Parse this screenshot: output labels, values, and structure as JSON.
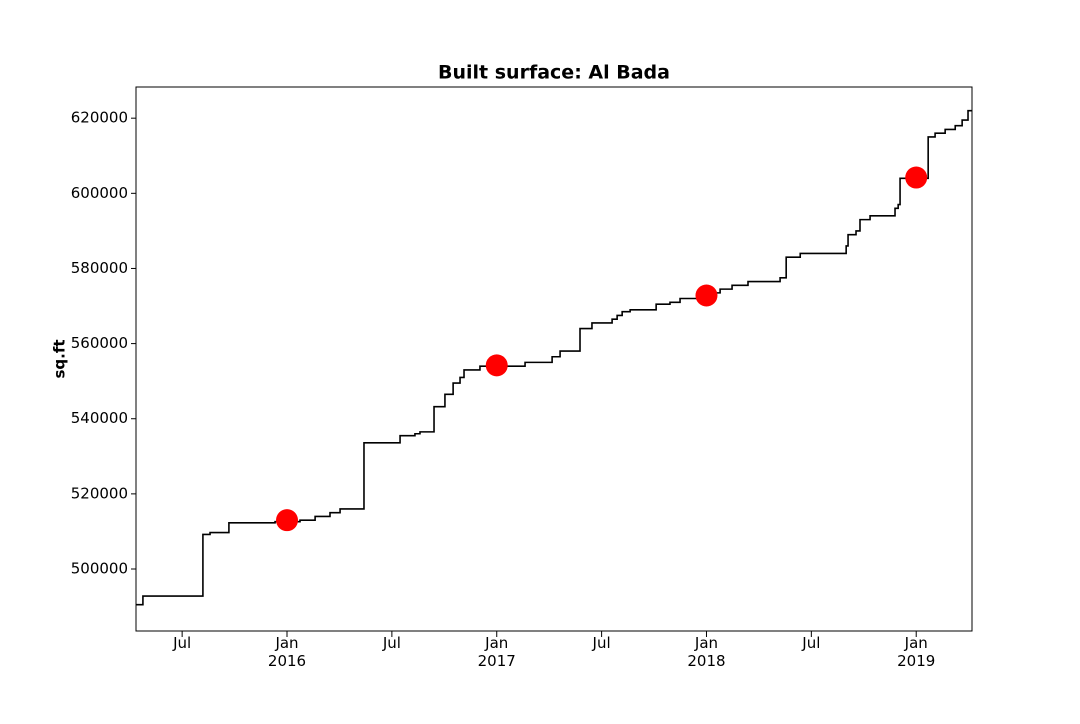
{
  "chart_data": {
    "type": "line",
    "title": "Built surface: Al Bada",
    "ylabel": "sq.ft",
    "xlim": [
      2015.28,
      2019.266
    ],
    "ylim": [
      483500,
      628300
    ],
    "xticks": [
      {
        "value": 2015.5,
        "label": "Jul"
      },
      {
        "value": 2016,
        "label": "Jan 2016"
      },
      {
        "value": 2016.5,
        "label": "Jul"
      },
      {
        "value": 2017,
        "label": "Jan 2017"
      },
      {
        "value": 2017.5,
        "label": "Jul"
      },
      {
        "value": 2018,
        "label": "Jan 2018"
      },
      {
        "value": 2018.5,
        "label": "Jul"
      },
      {
        "value": 2019,
        "label": "Jan 2019"
      }
    ],
    "yticks": [
      500000,
      520000,
      540000,
      560000,
      580000,
      600000,
      620000
    ],
    "series": [
      {
        "type": "line",
        "color": "#000000",
        "x": [
          2015.28,
          2015.313,
          2015.313,
          2015.599,
          2015.599,
          2015.633,
          2015.633,
          2015.723,
          2015.723,
          2015.943,
          2015.943,
          2016.062,
          2016.062,
          2016.134,
          2016.134,
          2016.205,
          2016.205,
          2016.253,
          2016.253,
          2016.367,
          2016.367,
          2016.539,
          2016.539,
          2016.61,
          2016.61,
          2016.634,
          2016.634,
          2016.701,
          2016.701,
          2016.753,
          2016.753,
          2016.792,
          2016.792,
          2016.825,
          2016.825,
          2016.844,
          2016.844,
          2016.92,
          2016.92,
          2017.135,
          2017.135,
          2017.264,
          2017.264,
          2017.302,
          2017.302,
          2017.397,
          2017.397,
          2017.454,
          2017.454,
          2017.55,
          2017.55,
          2017.574,
          2017.574,
          2017.598,
          2017.598,
          2017.636,
          2017.636,
          2017.76,
          2017.76,
          2017.826,
          2017.826,
          2017.874,
          2017.874,
          2017.969,
          2017.969,
          2018.027,
          2018.027,
          2018.065,
          2018.065,
          2018.122,
          2018.122,
          2018.198,
          2018.198,
          2018.351,
          2018.351,
          2018.38,
          2018.38,
          2018.447,
          2018.447,
          2018.666,
          2018.666,
          2018.675,
          2018.675,
          2018.713,
          2018.713,
          2018.732,
          2018.732,
          2018.78,
          2018.78,
          2018.899,
          2018.899,
          2018.914,
          2018.914,
          2018.923,
          2018.923,
          2019.057,
          2019.057,
          2019.09,
          2019.09,
          2019.138,
          2019.138,
          2019.186,
          2019.186,
          2019.219,
          2019.219,
          2019.247,
          2019.247,
          2019.266
        ],
        "values": [
          490500,
          490500,
          492800,
          492800,
          509200,
          509200,
          509700,
          509700,
          512300,
          512300,
          512600,
          512600,
          513000,
          513000,
          514000,
          514000,
          515000,
          515000,
          516000,
          516000,
          533600,
          533600,
          535500,
          535500,
          536000,
          536000,
          536500,
          536500,
          543200,
          543200,
          546500,
          546500,
          549500,
          549500,
          551000,
          551000,
          553000,
          553000,
          554000,
          554000,
          555000,
          555000,
          556500,
          556500,
          558000,
          558000,
          564000,
          564000,
          565500,
          565500,
          566500,
          566500,
          567500,
          567500,
          568500,
          568500,
          569000,
          569000,
          570500,
          570500,
          571000,
          571000,
          572000,
          572000,
          572700,
          572700,
          573500,
          573500,
          574500,
          574500,
          575500,
          575500,
          576500,
          576500,
          577500,
          577500,
          583000,
          583000,
          584000,
          584000,
          586000,
          586000,
          589000,
          589000,
          590000,
          590000,
          593000,
          593000,
          594000,
          594000,
          596000,
          596000,
          597000,
          597000,
          604000,
          604000,
          615000,
          615000,
          616000,
          616000,
          617000,
          617000,
          618000,
          618000,
          619500,
          619500,
          622000,
          622000
        ]
      },
      {
        "type": "scatter",
        "color": "#ff0000",
        "x": [
          2016,
          2017,
          2018,
          2019
        ],
        "values": [
          513000,
          554200,
          572800,
          604200
        ]
      }
    ]
  }
}
